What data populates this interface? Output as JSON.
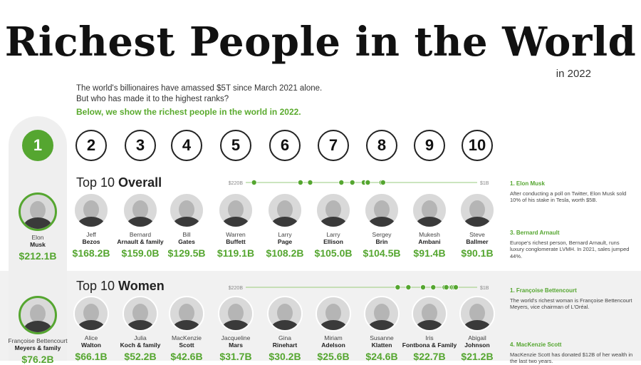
{
  "title": "Richest People in the World",
  "subtitle": "in 2022",
  "intro": {
    "line1": "The world's billionaires have amassed $5T since March 2021 alone.",
    "line2": "But who has made it to the highest ranks?",
    "highlight": "Below, we show the richest people in the world in 2022."
  },
  "ranks": [
    "1",
    "2",
    "3",
    "4",
    "5",
    "6",
    "7",
    "8",
    "9",
    "10"
  ],
  "colors": {
    "accent": "#55a630",
    "text": "#222222",
    "band": "#f1f1f1"
  },
  "sections": {
    "overall": {
      "prefix": "Top 10 ",
      "bold": "Overall",
      "scale_left": "$220B",
      "scale_right": "$1B"
    },
    "women": {
      "prefix": "Top 10 ",
      "bold": "Women",
      "scale_left": "$220B",
      "scale_right": "$1B"
    }
  },
  "chart_data": [
    {
      "type": "table",
      "title": "Top 10 Overall",
      "xlim": [
        220,
        1
      ],
      "unit": "$B",
      "people": [
        {
          "first": "Elon",
          "last": "Musk",
          "worth_label": "$212.1B",
          "value": 212.1
        },
        {
          "first": "Jeff",
          "last": "Bezos",
          "worth_label": "$168.2B",
          "value": 168.2
        },
        {
          "first": "Bernard",
          "last": "Arnault & family",
          "worth_label": "$159.0B",
          "value": 159.0
        },
        {
          "first": "Bill",
          "last": "Gates",
          "worth_label": "$129.5B",
          "value": 129.5
        },
        {
          "first": "Warren",
          "last": "Buffett",
          "worth_label": "$119.1B",
          "value": 119.1
        },
        {
          "first": "Larry",
          "last": "Page",
          "worth_label": "$108.2B",
          "value": 108.2
        },
        {
          "first": "Larry",
          "last": "Ellison",
          "worth_label": "$105.0B",
          "value": 105.0
        },
        {
          "first": "Sergey",
          "last": "Brin",
          "worth_label": "$104.5B",
          "value": 104.5
        },
        {
          "first": "Mukesh",
          "last": "Ambani",
          "worth_label": "$91.4B",
          "value": 91.4
        },
        {
          "first": "Steve",
          "last": "Ballmer",
          "worth_label": "$90.1B",
          "value": 90.1
        }
      ]
    },
    {
      "type": "table",
      "title": "Top 10 Women",
      "xlim": [
        220,
        1
      ],
      "unit": "$B",
      "people": [
        {
          "first": "Françoise Bettencourt",
          "last": "Meyers & family",
          "worth_label": "$76.2B",
          "value": 76.2
        },
        {
          "first": "Alice",
          "last": "Walton",
          "worth_label": "$66.1B",
          "value": 66.1
        },
        {
          "first": "Julia",
          "last": "Koch & family",
          "worth_label": "$52.2B",
          "value": 52.2
        },
        {
          "first": "MacKenzie",
          "last": "Scott",
          "worth_label": "$42.6B",
          "value": 42.6
        },
        {
          "first": "Jacqueline",
          "last": "Mars",
          "worth_label": "$31.7B",
          "value": 31.7
        },
        {
          "first": "Gina",
          "last": "Rinehart",
          "worth_label": "$30.2B",
          "value": 30.2
        },
        {
          "first": "Miriam",
          "last": "Adelson",
          "worth_label": "$25.6B",
          "value": 25.6
        },
        {
          "first": "Susanne",
          "last": "Klatten",
          "worth_label": "$24.6B",
          "value": 24.6
        },
        {
          "first": "Iris",
          "last": "Fontbona & Family",
          "worth_label": "$22.7B",
          "value": 22.7
        },
        {
          "first": "Abigail",
          "last": "Johnson",
          "worth_label": "$21.2B",
          "value": 21.2
        }
      ]
    }
  ],
  "notes": [
    {
      "heading": "1. Elon Musk",
      "text": "After conducting a poll on Twitter, Elon Musk sold 10% of his stake in Tesla, worth $5B."
    },
    {
      "heading": "3. Bernard Arnault",
      "text": "Europe's richest person, Bernard Arnault, runs luxury conglomerate LVMH. In 2021, sales jumped 44%."
    },
    {
      "heading": "1. Françoise Bettencourt",
      "text": "The world's richest woman is Françoise Bettencourt Meyers, vice chairman of L'Oréal."
    },
    {
      "heading": "4. MacKenzie Scott",
      "text": "MacKenzie Scott has donated $12B of her wealth in the last two years."
    }
  ]
}
